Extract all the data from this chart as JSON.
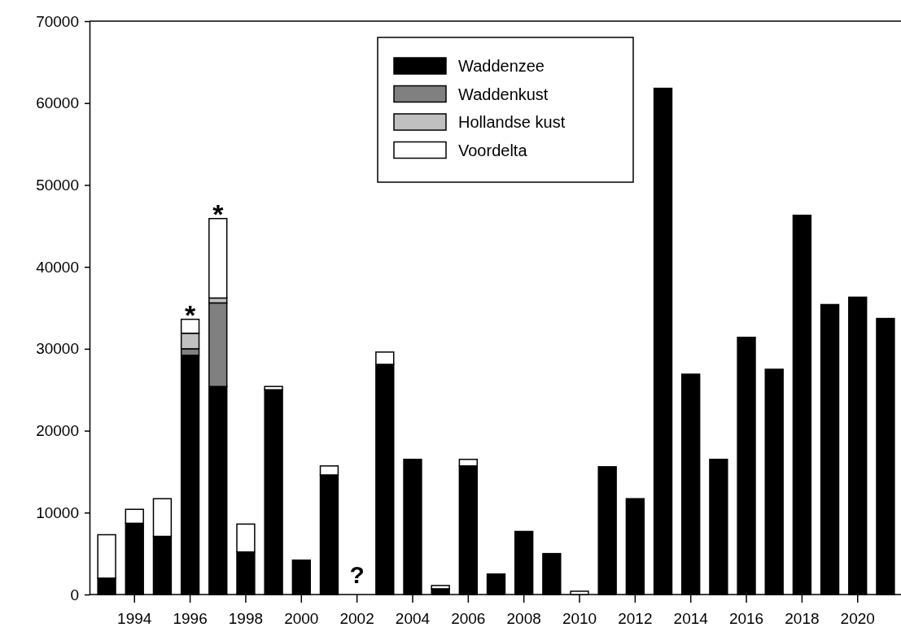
{
  "chart_data": {
    "type": "bar",
    "stacked": true,
    "categories": [
      null,
      "1994",
      null,
      "1996",
      null,
      "1998",
      null,
      "2000",
      null,
      "2002",
      null,
      "2004",
      null,
      "2006",
      null,
      "2008",
      null,
      "2010",
      null,
      "2012",
      null,
      "2014",
      null,
      "2016",
      null,
      "2018",
      null,
      "2020",
      null
    ],
    "series": [
      {
        "name": "Waddenzee",
        "color": "#000000",
        "values": [
          2000,
          8700,
          7100,
          29200,
          25400,
          5200,
          25000,
          4200,
          14600,
          null,
          28100,
          16500,
          700,
          15700,
          2500,
          7700,
          5000,
          0,
          15600,
          11700,
          61800,
          26900,
          16500,
          31400,
          27500,
          46300,
          35400,
          36300,
          33700
        ]
      },
      {
        "name": "Waddenkust",
        "color": "#808080",
        "values": [
          0,
          0,
          0,
          800,
          10200,
          0,
          0,
          0,
          0,
          null,
          0,
          0,
          0,
          0,
          0,
          0,
          0,
          0,
          0,
          0,
          0,
          0,
          0,
          0,
          0,
          0,
          0,
          0,
          0
        ]
      },
      {
        "name": "Hollandse kust",
        "color": "#c0c0c0",
        "values": [
          0,
          0,
          0,
          1900,
          600,
          0,
          0,
          0,
          0,
          null,
          0,
          0,
          0,
          0,
          0,
          0,
          0,
          0,
          0,
          0,
          0,
          0,
          0,
          0,
          0,
          0,
          0,
          0,
          0
        ]
      },
      {
        "name": "Voordelta",
        "color": "#ffffff",
        "values": [
          5300,
          1700,
          4600,
          1700,
          9700,
          3400,
          400,
          0,
          1100,
          null,
          1500,
          0,
          400,
          800,
          0,
          0,
          0,
          400,
          0,
          0,
          0,
          0,
          0,
          0,
          0,
          0,
          0,
          0,
          0
        ]
      }
    ],
    "ylim": [
      0,
      70000
    ],
    "yticks": [
      0,
      10000,
      20000,
      30000,
      40000,
      50000,
      60000,
      70000
    ],
    "legend": "top",
    "annotations": [
      {
        "text": "*",
        "x": "1996",
        "y": 33600
      },
      {
        "text": "*",
        "y": 45900
      },
      "?"
    ]
  }
}
